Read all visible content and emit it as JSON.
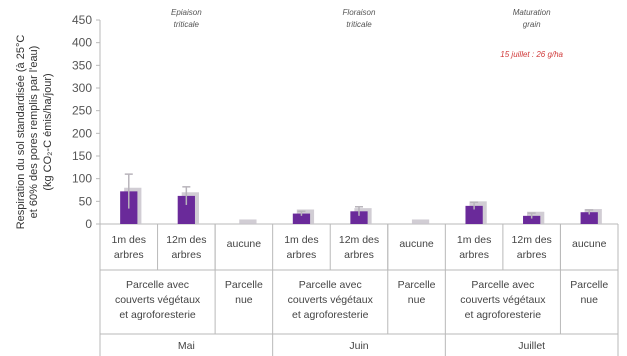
{
  "chart_data": {
    "type": "bar",
    "ylabel_line1": "Respiration du sol standardisée (à 25°C",
    "ylabel_line2": "et 60% des pores remplis par l'eau)",
    "ylabel_line3": "(kg CO₂-C émis/ha/jour)",
    "ylim": [
      0,
      450
    ],
    "yticks": [
      0,
      50,
      100,
      150,
      200,
      250,
      300,
      350,
      400,
      450
    ],
    "groups": [
      {
        "month": "Mai",
        "annotation": [
          "Epiaison",
          "triticale"
        ],
        "bars": [
          {
            "position": [
              "1m des",
              "arbres"
            ],
            "value": 72,
            "error": 38,
            "shadow": 80
          },
          {
            "position": [
              "12m des",
              "arbres"
            ],
            "value": 62,
            "error": 20,
            "shadow": 70
          },
          {
            "position": [
              "aucune"
            ],
            "value": 0,
            "error": 0,
            "shadow": 10
          }
        ],
        "treatments": [
          {
            "label": [
              "Parcelle avec",
              "couverts végétaux",
              "et agroforesterie"
            ],
            "span": 2
          },
          {
            "label": [
              "Parcelle",
              "nue"
            ],
            "span": 1
          }
        ]
      },
      {
        "month": "Juin",
        "annotation": [
          "Floraison",
          "triticale"
        ],
        "bars": [
          {
            "position": [
              "1m des",
              "arbres"
            ],
            "value": 23,
            "error": 5,
            "shadow": 32
          },
          {
            "position": [
              "12m des",
              "arbres"
            ],
            "value": 28,
            "error": 10,
            "shadow": 35
          },
          {
            "position": [
              "aucune"
            ],
            "value": 0,
            "error": 0,
            "shadow": 10
          }
        ],
        "treatments": [
          {
            "label": [
              "Parcelle avec",
              "couverts végétaux",
              "et agroforesterie"
            ],
            "span": 2
          },
          {
            "label": [
              "Parcelle",
              "nue"
            ],
            "span": 1
          }
        ]
      },
      {
        "month": "Juillet",
        "annotation": [
          "Maturation",
          "grain"
        ],
        "note": "15 juillet : 26 g/ha",
        "bars": [
          {
            "position": [
              "1m des",
              "arbres"
            ],
            "value": 40,
            "error": 8,
            "shadow": 50
          },
          {
            "position": [
              "12m des",
              "arbres"
            ],
            "value": 18,
            "error": 6,
            "shadow": 27
          },
          {
            "position": [
              "aucune"
            ],
            "value": 26,
            "error": 5,
            "shadow": 33
          }
        ],
        "treatments": [
          {
            "label": [
              "Parcelle avec",
              "couverts végétaux",
              "et agroforesterie"
            ],
            "span": 2
          },
          {
            "label": [
              "Parcelle",
              "nue"
            ],
            "span": 1
          }
        ]
      }
    ],
    "colors": {
      "bar": "#6a2a9a",
      "shadow": "#c9c4cd",
      "error": "#b8b4bb",
      "axis": "#b9b9b9",
      "note": "#d03a3a"
    }
  }
}
